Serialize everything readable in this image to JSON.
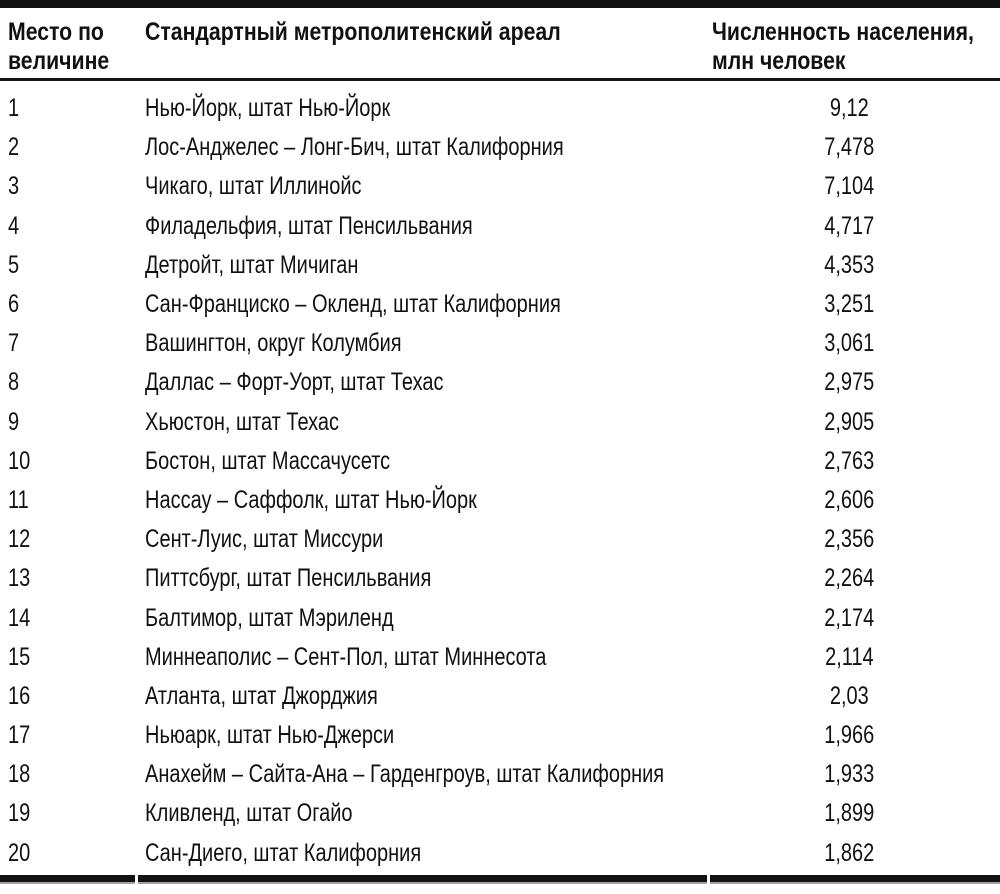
{
  "page": {
    "background_color": "#ffffff",
    "text_color": "#111111",
    "rule_color": "#121212"
  },
  "table": {
    "columns": [
      {
        "label": "Место по величине"
      },
      {
        "label": "Стандартный метрополитенский ареал"
      },
      {
        "label": "Численность населения, млн человек"
      }
    ],
    "rows": [
      {
        "rank": "1",
        "area": "Нью-Йорк, штат Нью-Йорк",
        "population": "9,12"
      },
      {
        "rank": "2",
        "area": "Лос-Анджелес – Лонг-Бич, штат Калифорния",
        "population": "7,478"
      },
      {
        "rank": "3",
        "area": "Чикаго, штат Иллинойс",
        "population": "7,104"
      },
      {
        "rank": "4",
        "area": "Филадельфия, штат Пенсильвания",
        "population": "4,717"
      },
      {
        "rank": "5",
        "area": "Детройт, штат Мичиган",
        "population": "4,353"
      },
      {
        "rank": "6",
        "area": "Сан-Франциско – Окленд, штат Калифорния",
        "population": "3,251"
      },
      {
        "rank": "7",
        "area": "Вашингтон, округ Колумбия",
        "population": "3,061"
      },
      {
        "rank": "8",
        "area": "Даллас – Форт-Уорт, штат Техас",
        "population": "2,975"
      },
      {
        "rank": "9",
        "area": "Хьюстон, штат Техас",
        "population": "2,905"
      },
      {
        "rank": "10",
        "area": "Бостон, штат Массачусетс",
        "population": "2,763"
      },
      {
        "rank": "11",
        "area": "Нассау – Саффолк, штат Нью-Йорк",
        "population": "2,606"
      },
      {
        "rank": "12",
        "area": "Сент-Луис, штат Миссури",
        "population": "2,356"
      },
      {
        "rank": "13",
        "area": "Питтсбург, штат Пенсильвания",
        "population": "2,264"
      },
      {
        "rank": "14",
        "area": "Балтимор, штат Мэриленд",
        "population": "2,174"
      },
      {
        "rank": "15",
        "area": "Миннеаполис – Сент-Пол, штат Миннесота",
        "population": "2,114"
      },
      {
        "rank": "16",
        "area": "Атланта, штат Джорджия",
        "population": "2,03"
      },
      {
        "rank": "17",
        "area": "Ньюарк, штат Нью-Джерси",
        "population": "1,966"
      },
      {
        "rank": "18",
        "area": "Анахейм – Сайта-Ана – Гарденгроув, штат Калифорния",
        "population": "1,933"
      },
      {
        "rank": "19",
        "area": "Кливленд, штат Огайо",
        "population": "1,899"
      },
      {
        "rank": "20",
        "area": "Сан-Диего, штат Калифорния",
        "population": "1,862"
      }
    ]
  }
}
